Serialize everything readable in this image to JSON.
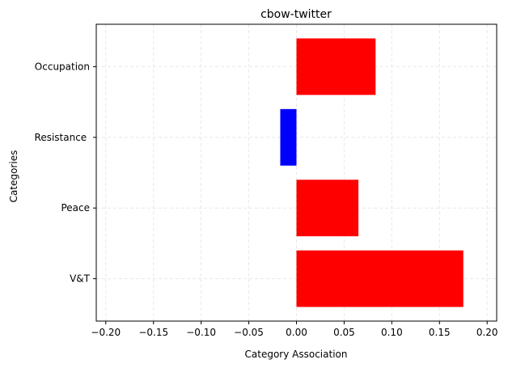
{
  "chart_data": {
    "type": "bar",
    "orientation": "horizontal",
    "title": "cbow-twitter",
    "xlabel": "Category Association",
    "ylabel": "Categories",
    "xlim": [
      -0.21,
      0.21
    ],
    "xticks": [
      -0.2,
      -0.15,
      -0.1,
      -0.05,
      0.0,
      0.05,
      0.1,
      0.15,
      0.2
    ],
    "xtick_labels": [
      "−0.20",
      "−0.15",
      "−0.10",
      "−0.05",
      "0.00",
      "0.05",
      "0.10",
      "0.15",
      "0.20"
    ],
    "categories": [
      "V&T",
      "Peace",
      "Resistance ",
      "Occupation"
    ],
    "values": [
      0.175,
      0.065,
      -0.017,
      0.083
    ],
    "colors": [
      "#ff0000",
      "#ff0000",
      "#0000ff",
      "#ff0000"
    ],
    "grid": true
  }
}
